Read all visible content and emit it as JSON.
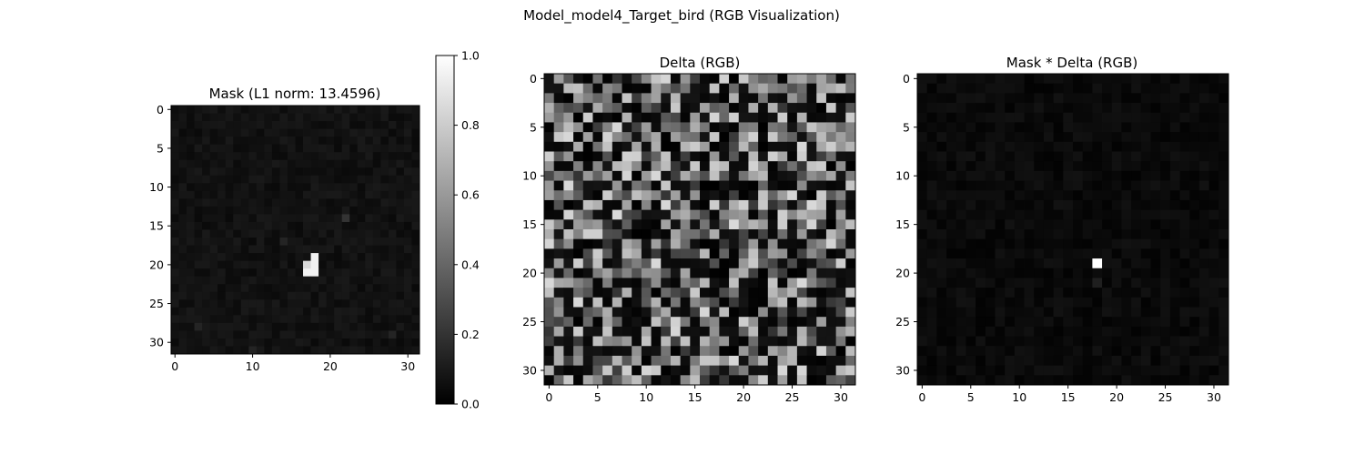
{
  "figure": {
    "title": "Model_model4_Target_bird (RGB Visualization)"
  },
  "chart_data": [
    {
      "type": "heatmap",
      "title": "Mask (L1 norm: 13.4596)",
      "colormap": "gray",
      "grid_size": [
        32,
        32
      ],
      "xticks": [
        0,
        10,
        20,
        30
      ],
      "yticks": [
        0,
        5,
        10,
        15,
        20,
        25,
        30
      ],
      "xlim": [
        -0.5,
        31.5
      ],
      "ylim": [
        31.5,
        -0.5
      ],
      "background_value": 0.04,
      "highlights": [
        {
          "row": 19,
          "col": 18,
          "value": 0.95
        },
        {
          "row": 20,
          "col": 17,
          "value": 0.85
        },
        {
          "row": 20,
          "col": 18,
          "value": 0.95
        },
        {
          "row": 21,
          "col": 17,
          "value": 0.95
        },
        {
          "row": 21,
          "col": 18,
          "value": 0.95
        },
        {
          "row": 14,
          "col": 22,
          "value": 0.2
        },
        {
          "row": 17,
          "col": 14,
          "value": 0.14
        },
        {
          "row": 28,
          "col": 3,
          "value": 0.14
        },
        {
          "row": 29,
          "col": 28,
          "value": 0.14
        },
        {
          "row": 31,
          "col": 10,
          "value": 0.14
        }
      ],
      "colorbar": {
        "min": 0.0,
        "max": 1.0,
        "ticks": [
          "0.0",
          "0.2",
          "0.4",
          "0.6",
          "0.8",
          "1.0"
        ]
      }
    },
    {
      "type": "heatmap",
      "title": "Delta (RGB)",
      "colormap": "gray",
      "grid_size": [
        32,
        32
      ],
      "xticks": [
        0,
        5,
        10,
        15,
        20,
        25,
        30
      ],
      "yticks": [
        0,
        5,
        10,
        15,
        20,
        25,
        30
      ],
      "xlim": [
        -0.5,
        31.5
      ],
      "ylim": [
        31.5,
        -0.5
      ],
      "value_range": [
        0,
        1
      ]
    },
    {
      "type": "heatmap",
      "title": "Mask * Delta (RGB)",
      "colormap": "gray",
      "grid_size": [
        32,
        32
      ],
      "xticks": [
        0,
        5,
        10,
        15,
        20,
        25,
        30
      ],
      "yticks": [
        0,
        5,
        10,
        15,
        20,
        25,
        30
      ],
      "xlim": [
        -0.5,
        31.5
      ],
      "ylim": [
        31.5,
        -0.5
      ],
      "background_value": 0.01,
      "highlights": [
        {
          "row": 19,
          "col": 18,
          "value": 1.0
        },
        {
          "row": 21,
          "col": 18,
          "value": 0.12
        },
        {
          "row": 27,
          "col": 28,
          "value": 0.06
        }
      ]
    }
  ]
}
